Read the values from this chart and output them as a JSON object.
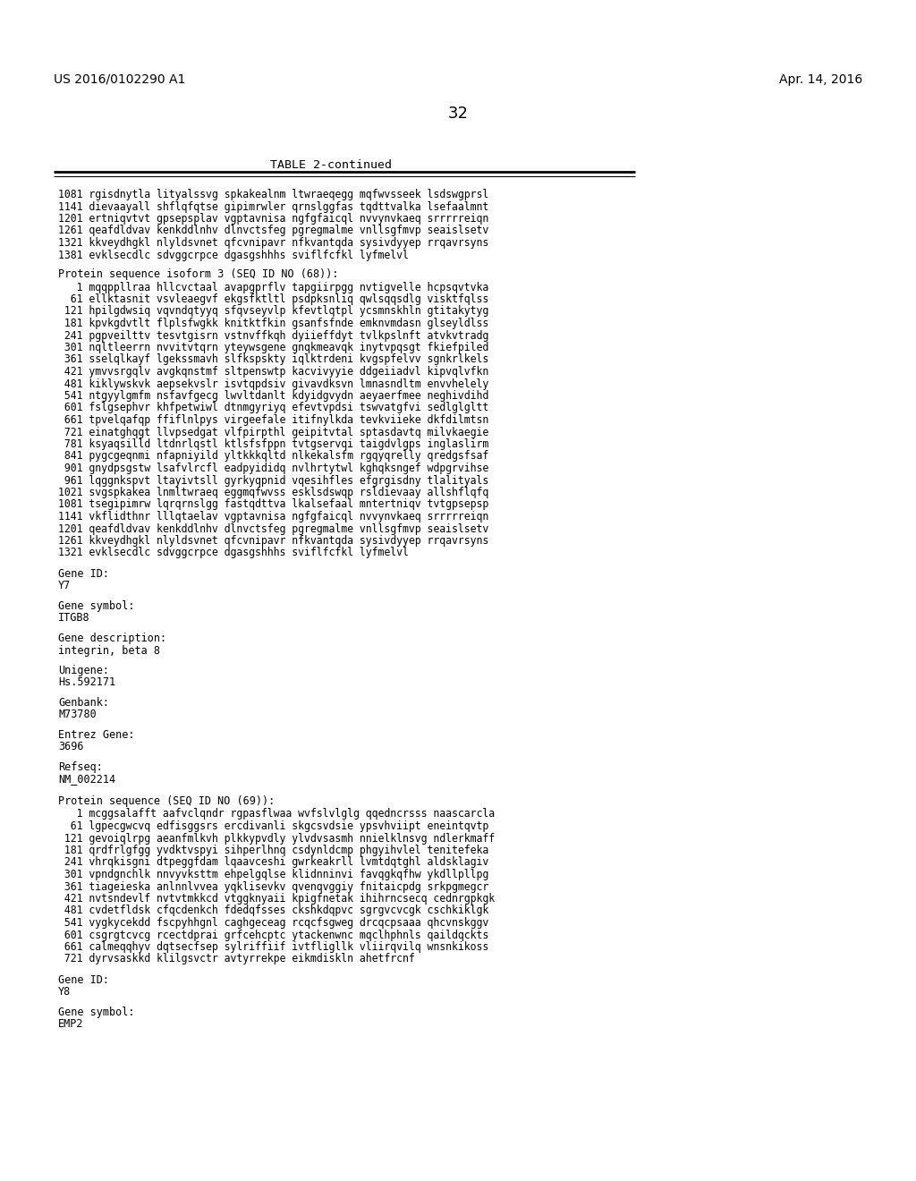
{
  "header_left": "US 2016/0102290 A1",
  "header_right": "Apr. 14, 2016",
  "page_number": "32",
  "table_title": "TABLE 2-continued",
  "background_color": "#ffffff",
  "text_color": "#000000",
  "table_content": [
    "1081 rgisdnytla lityalssvg spkakealnm ltwraeqegg mqfwvsseek lsdswgprsl",
    "1141 dievaayall shflqfqtse gipimrwler qrnslggfas tqdttvalka lsefaalmnt",
    "1201 ertniqvtvt gpsepsplav vgptavnisa ngfgfaicql nvvynvkaeq srrrrreiqn",
    "1261 qeafdldvav kenkddlnhv dlnvctsfeg pgregmalme vnllsgfmvp seaislsetv",
    "1321 kkveydhgkl nlyldsvnet qfcvnipavr nfkvantqda sysivdyyep rrqavrsyns",
    "1381 evklsecdlc sdvggcrpce dgasgshhhs sviflfcfkl lyfmelvl"
  ],
  "protein1_header": "Protein sequence isoform 3 (SEQ ID NO (68)):",
  "protein1_seq": [
    "   1 mqqppllraa hllcvctaal avapgprflv tapgiirpgg nvtigvelle hcpsqvtvka",
    "  61 ellktasnit vsvleaegvf ekgsfktltl psdpksnliq qwlsqqsdlg visktfqlss",
    " 121 hpilgdwsiq vqvndqtyyq sfqvseyvlp kfevtlqtpl ycsmnskhln gtitakytyg",
    " 181 kpvkgdvtlt flplsfwgkk knitktfkin gsanfsfnde emknvmdasn glseyldlss",
    " 241 pgpveilttv tesvtgisrn vstnvffkqh dyiieffdyt tvlkpslnft atvkvtradg",
    " 301 nqltleerrn nvvitvtqrn yteywsgene gnqkmeavqk inytvpqsgt fkiefpiled",
    " 361 sselqlkayf lgekssmavh slfkspskty iqlktrdeni kvgspfelvv sgnkrlkels",
    " 421 ymvvsrgqlv avgkqnstmf sltpenswtp kacvivyyie ddgeiiadvl kipvqlvfkn",
    " 481 kiklywskvk aepsekvslr isvtqpdsiv givavdksvn lmnasndltm envvhelely",
    " 541 ntgyylgmfm nsfavfgecg lwvltdanlt kdyidgvydn aeyaerfmee neghivdihd",
    " 601 fslgsephvr khfpetwiwl dtnmgyriyq efevtvpdsi tswvatgfvi sedlglgltt",
    " 661 tpvelqafqp ffiflnlpys virgeefale itifnylkda tevkviieke dkfdilmtsn",
    " 721 einatghqgt llvpsedgat vlfpirpthl geipitvtal sptasdavtq milvkaegie",
    " 781 ksyaqsilld ltdnrlqstl ktlsfsfppn tvtgservqi taigdvlgps inglaslirm",
    " 841 pygcgeqnmi nfapniyild yltkkkqltd nlkekalsfm rgqyqrelly qredgsfsaf",
    " 901 gnydpsgstw lsafvlrcfl eadpyididq nvlhrtytwl kghqksngef wdpgrvihse",
    " 961 lqggnkspvt ltayivtsll gyrkyqpnid vqesihfles efgrgisdny tlalityals",
    "1021 svgspkakea lnmltwraeq eggmqfwvss esklsdswqp rsldievaay allshflqfq",
    "1081 tsegipimrw lqrqrnslgg fastqdttva lkalsefaal mntertniqv tvtgpsepsp",
    "1141 vkflidthnr lllqtaelav vgptavnisa ngfgfaicql nvvynvkaeq srrrrreiqn",
    "1201 qeafdldvav kenkddlnhv dlnvctsfeg pgregmalme vnllsgfmvp seaislsetv",
    "1261 kkveydhgkl nlyldsvnet qfcvnipavr nfkvantqda sysivdyyep rrqavrsyns",
    "1321 evklsecdlc sdvggcrpce dgasgshhhs sviflfcfkl lyfmelvl"
  ],
  "gene1_sections": [
    [
      "Gene ID:",
      "Y7"
    ],
    [
      "Gene symbol:",
      "ITGB8"
    ],
    [
      "Gene description:",
      "integrin, beta 8"
    ],
    [
      "Unigene:",
      "Hs.592171"
    ],
    [
      "Genbank:",
      "M73780"
    ],
    [
      "Entrez Gene:",
      "3696"
    ],
    [
      "Refseq:",
      "NM_002214"
    ]
  ],
  "protein2_header": "Protein sequence (SEQ ID NO (69)):",
  "protein2_seq": [
    "   1 mcggsalafft aafvclqndr rgpasflwaa wvfslvlglg qqedncrsss naascarcla",
    "  61 lgpecgwcvq edfisggsrs ercdivanli skgcsvdsie ypsvhviipt eneintqvtp",
    " 121 gevoiqlrpg aeanfmlkvh plkkypvdly ylvdvsasmh nnielklnsvg ndlerkmaff",
    " 181 qrdfrlgfgg yvdktvspyi sihperlhnq csdynldcmp phgyihvlel tenitefeka",
    " 241 vhrqkisgni dtpeggfdam lqaavceshi gwrkeakrll lvmtdqtghl aldsklagiv",
    " 301 vpndgnchlk nnvyvksttm ehpelgqlse klidnninvi favqgkqfhw ykdllpllpg",
    " 361 tiageieska anlnnlvvea yqklisevkv qvenqvggiy fnitaicpdg srkpgmegcr",
    " 421 nvtsndevlf nvtvtmkkcd vtggknyaii kpigfnetak ihihrncsecq cednrgpkgk",
    " 481 cvdetfldsk cfqcdenkch fdedqfsses ckshkdqpvc sgrgvcvcgk cschkiklgk",
    " 541 vygkycekdd fscpyhhgnl caghgeceag rcqcfsgweg drcqcpsaaa qhcvnskggv",
    " 601 csgrgtcvcg rcectdprai grfcehcptc ytackenwnc mqclhphnls qaildqckts",
    " 661 calmeqqhyv dqtsecfsep sylriffiif ivtfligllk vliirqvilq wnsnkikoss",
    " 721 dyrvsaskkd klilgsvctr avtyrrekpe eikmdiskln ahetfrcnf"
  ],
  "gene2_sections": [
    [
      "Gene ID:",
      "Y8"
    ],
    [
      "Gene symbol:",
      "EMP2"
    ]
  ]
}
